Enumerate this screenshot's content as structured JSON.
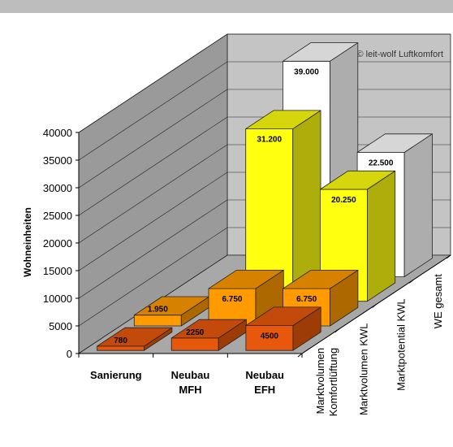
{
  "chart_data": {
    "type": "bar",
    "title": "",
    "ylabel": "Wohneinheiten",
    "ylim": [
      0,
      40000
    ],
    "yticks": [
      0,
      5000,
      10000,
      15000,
      20000,
      25000,
      30000,
      35000,
      40000
    ],
    "categories": [
      {
        "line1": "Sanierung",
        "line2": ""
      },
      {
        "line1": "Neubau",
        "line2": "MFH"
      },
      {
        "line1": "Neubau",
        "line2": "EFH"
      }
    ],
    "series": [
      {
        "name": "Marktvolumen Komfortlüftung",
        "name_lines": [
          "Marktvolumen",
          "Komfortlüftung"
        ],
        "color": "#e8580c",
        "values": [
          780,
          2250,
          4500
        ],
        "labels": [
          "780",
          "2250",
          "4500"
        ]
      },
      {
        "name": "Marktvolumen KWL",
        "name_lines": [
          "Marktvolumen KWL"
        ],
        "color": "#ff9a00",
        "values": [
          1950,
          6750,
          6750
        ],
        "labels": [
          "1.950",
          "6.750",
          "6.750"
        ]
      },
      {
        "name": "Marktpotential KWL",
        "name_lines": [
          "Marktpotential KWL"
        ],
        "color": "#ffff10",
        "values": [
          null,
          31200,
          20250
        ],
        "labels": [
          "",
          "31.200",
          "20.250"
        ]
      },
      {
        "name": "WE gesamt",
        "name_lines": [
          "WE gesamt"
        ],
        "color": "#ffffff",
        "values": [
          null,
          39000,
          22500
        ],
        "labels": [
          "",
          "39.000",
          "22.500"
        ]
      }
    ],
    "annotation": "© leit-wolf Luftkomfort",
    "grid": true,
    "legend": "none"
  }
}
